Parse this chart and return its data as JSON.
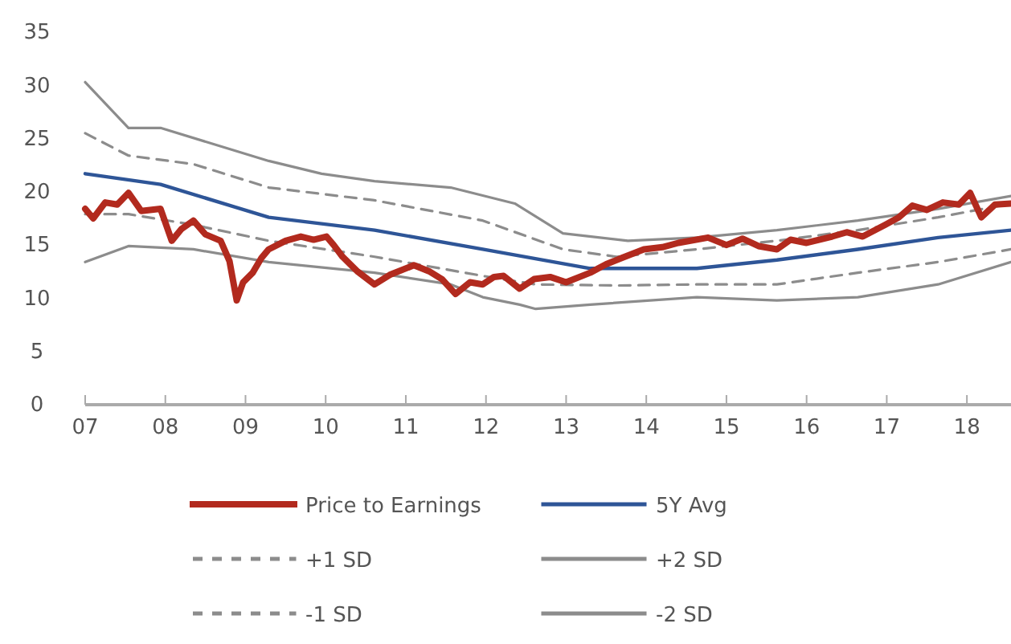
{
  "chart_data": {
    "type": "line",
    "xlim": [
      2007,
      2018.55
    ],
    "ylim": [
      0,
      35
    ],
    "xticks": [
      {
        "value": 2007,
        "label": "07"
      },
      {
        "value": 2008,
        "label": "08"
      },
      {
        "value": 2009,
        "label": "09"
      },
      {
        "value": 2010,
        "label": "10"
      },
      {
        "value": 2011,
        "label": "11"
      },
      {
        "value": 2012,
        "label": "12"
      },
      {
        "value": 2013,
        "label": "13"
      },
      {
        "value": 2014,
        "label": "14"
      },
      {
        "value": 2015,
        "label": "15"
      },
      {
        "value": 2016,
        "label": "16"
      },
      {
        "value": 2017,
        "label": "17"
      },
      {
        "value": 2018,
        "label": "18"
      }
    ],
    "yticks": [
      0,
      5,
      10,
      15,
      20,
      25,
      30,
      35
    ],
    "grid": false,
    "legend": "bottom",
    "marker": "none",
    "series": [
      {
        "name": "Price to Earnings",
        "color": "#b22a1e",
        "line_style": "solid",
        "x": [
          2007,
          2007.1,
          2007.25,
          2007.4,
          2007.54,
          2007.7,
          2007.94,
          2008.08,
          2008.2,
          2008.35,
          2008.5,
          2008.69,
          2008.8,
          2008.89,
          2008.97,
          2009.09,
          2009.2,
          2009.29,
          2009.5,
          2009.69,
          2009.85,
          2010.01,
          2010.1,
          2010.21,
          2010.4,
          2010.61,
          2010.8,
          2011.1,
          2011.3,
          2011.45,
          2011.62,
          2011.8,
          2011.96,
          2012.1,
          2012.22,
          2012.42,
          2012.6,
          2012.8,
          2013,
          2013.3,
          2013.5,
          2013.7,
          2013.97,
          2014.2,
          2014.4,
          2014.77,
          2015,
          2015.2,
          2015.4,
          2015.63,
          2015.8,
          2016,
          2016.32,
          2016.5,
          2016.7,
          2016.98,
          2017.15,
          2017.32,
          2017.5,
          2017.7,
          2017.9,
          2018.04,
          2018.18,
          2018.35,
          2018.55
        ],
        "values": [
          18.4,
          17.5,
          19.0,
          18.8,
          19.9,
          18.2,
          18.4,
          15.4,
          16.5,
          17.3,
          16.0,
          15.4,
          13.5,
          9.8,
          11.5,
          12.4,
          13.8,
          14.6,
          15.4,
          15.8,
          15.5,
          15.8,
          15.0,
          13.9,
          12.5,
          11.3,
          12.2,
          13.1,
          12.5,
          11.8,
          10.4,
          11.5,
          11.3,
          12.0,
          12.1,
          10.9,
          11.8,
          12.0,
          11.5,
          12.4,
          13.2,
          13.8,
          14.6,
          14.8,
          15.2,
          15.7,
          15.0,
          15.6,
          14.9,
          14.6,
          15.5,
          15.2,
          15.8,
          16.2,
          15.8,
          16.9,
          17.6,
          18.7,
          18.3,
          19.0,
          18.8,
          19.9,
          17.6,
          18.8,
          18.9
        ]
      },
      {
        "name": "5Y Avg",
        "color": "#2e5597",
        "line_style": "solid",
        "x": [
          2007,
          2007.94,
          2009.29,
          2010.61,
          2011.96,
          2013.3,
          2014.63,
          2015.63,
          2016.64,
          2017.64,
          2018.55
        ],
        "values": [
          21.7,
          20.7,
          17.6,
          16.4,
          14.6,
          12.8,
          12.8,
          13.6,
          14.6,
          15.7,
          16.4
        ]
      },
      {
        "name": "+1 SD",
        "color": "#8c8c8c",
        "line_style": "dashed",
        "x": [
          2007,
          2007.54,
          2008.35,
          2009.29,
          2010.61,
          2011.96,
          2012.96,
          2013.63,
          2014.63,
          2015.63,
          2016.64,
          2017.64,
          2018.55
        ],
        "values": [
          25.5,
          23.4,
          22.6,
          20.4,
          19.2,
          17.3,
          14.6,
          13.9,
          14.6,
          15.4,
          16.4,
          17.6,
          18.9
        ]
      },
      {
        "name": "+2 SD",
        "color": "#8c8c8c",
        "line_style": "solid",
        "x": [
          2007,
          2007.54,
          2007.94,
          2009.29,
          2009.95,
          2010.61,
          2011.56,
          2012.36,
          2012.96,
          2013.77,
          2014.63,
          2015.63,
          2016.64,
          2017.64,
          2018.55
        ],
        "values": [
          30.3,
          26.0,
          26.0,
          22.9,
          21.7,
          21.0,
          20.4,
          18.9,
          16.1,
          15.4,
          15.7,
          16.4,
          17.3,
          18.4,
          19.6
        ]
      },
      {
        "name": "-1 SD",
        "color": "#8c8c8c",
        "line_style": "dashed",
        "x": [
          2007,
          2007.54,
          2008.35,
          2009.29,
          2010.61,
          2011.96,
          2012.62,
          2013.63,
          2014.63,
          2015.63,
          2016.64,
          2017.64,
          2018.55
        ],
        "values": [
          17.9,
          17.9,
          16.9,
          15.4,
          13.9,
          12.1,
          11.3,
          11.2,
          11.3,
          11.3,
          12.4,
          13.4,
          14.6
        ]
      },
      {
        "name": "-2 SD",
        "color": "#8c8c8c",
        "line_style": "solid",
        "x": [
          2007,
          2007.54,
          2008.35,
          2009.29,
          2010.61,
          2011.56,
          2011.96,
          2012.42,
          2012.62,
          2013.3,
          2014.63,
          2015.63,
          2016.64,
          2017.64,
          2018.55
        ],
        "values": [
          13.4,
          14.9,
          14.6,
          13.4,
          12.4,
          11.3,
          10.1,
          9.4,
          9.0,
          9.4,
          10.1,
          9.8,
          10.1,
          11.3,
          13.4
        ]
      }
    ]
  }
}
